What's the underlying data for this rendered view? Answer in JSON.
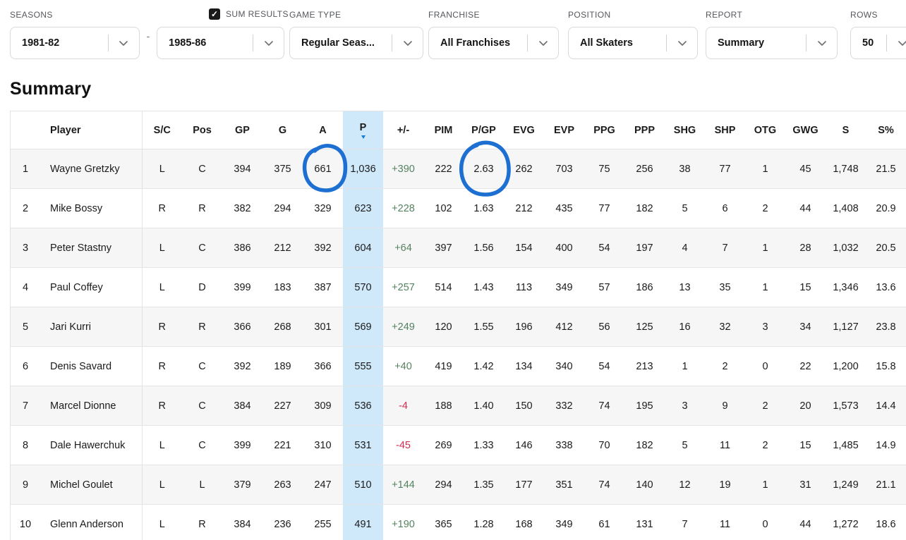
{
  "page_title": "Summary",
  "filters": {
    "seasons": {
      "label": "SEASONS",
      "from": "1981-82",
      "separator": "-",
      "to": "1985-86"
    },
    "sum_results": {
      "label": "SUM RESULTS",
      "checked": true,
      "check_glyph": "✓"
    },
    "game_type": {
      "label": "GAME TYPE",
      "value": "Regular Seas..."
    },
    "franchise": {
      "label": "FRANCHISE",
      "value": "All Franchises"
    },
    "position": {
      "label": "POSITION",
      "value": "All Skaters"
    },
    "report": {
      "label": "REPORT",
      "value": "Summary"
    },
    "rows": {
      "label": "ROWS",
      "value": "50"
    }
  },
  "table": {
    "columns": [
      "",
      "Player",
      "S/C",
      "Pos",
      "GP",
      "G",
      "A",
      "P",
      "+/-",
      "PIM",
      "P/GP",
      "EVG",
      "EVP",
      "PPG",
      "PPP",
      "SHG",
      "SHP",
      "OTG",
      "GWG",
      "S",
      "S%"
    ],
    "sorted_column": "P",
    "sort_direction": "desc",
    "colors": {
      "sorted_column_bg": "#cfe9fb",
      "positive": "#55825f",
      "negative": "#d12c50",
      "sort_arrow": "#1a7fd4"
    },
    "rows": [
      [
        "1",
        "Wayne Gretzky",
        "L",
        "C",
        "394",
        "375",
        "661",
        "1,036",
        "+390",
        "222",
        "2.63",
        "262",
        "703",
        "75",
        "256",
        "38",
        "77",
        "1",
        "45",
        "1,748",
        "21.5"
      ],
      [
        "2",
        "Mike Bossy",
        "R",
        "R",
        "382",
        "294",
        "329",
        "623",
        "+228",
        "102",
        "1.63",
        "212",
        "435",
        "77",
        "182",
        "5",
        "6",
        "2",
        "44",
        "1,408",
        "20.9"
      ],
      [
        "3",
        "Peter Stastny",
        "L",
        "C",
        "386",
        "212",
        "392",
        "604",
        "+64",
        "397",
        "1.56",
        "154",
        "400",
        "54",
        "197",
        "4",
        "7",
        "1",
        "28",
        "1,032",
        "20.5"
      ],
      [
        "4",
        "Paul Coffey",
        "L",
        "D",
        "399",
        "183",
        "387",
        "570",
        "+257",
        "514",
        "1.43",
        "113",
        "349",
        "57",
        "186",
        "13",
        "35",
        "1",
        "15",
        "1,346",
        "13.6"
      ],
      [
        "5",
        "Jari Kurri",
        "R",
        "R",
        "366",
        "268",
        "301",
        "569",
        "+249",
        "120",
        "1.55",
        "196",
        "412",
        "56",
        "125",
        "16",
        "32",
        "3",
        "34",
        "1,127",
        "23.8"
      ],
      [
        "6",
        "Denis Savard",
        "R",
        "C",
        "392",
        "189",
        "366",
        "555",
        "+40",
        "419",
        "1.42",
        "134",
        "340",
        "54",
        "213",
        "1",
        "2",
        "0",
        "22",
        "1,200",
        "15.8"
      ],
      [
        "7",
        "Marcel Dionne",
        "R",
        "C",
        "384",
        "227",
        "309",
        "536",
        "-4",
        "188",
        "1.40",
        "150",
        "332",
        "74",
        "195",
        "3",
        "9",
        "2",
        "20",
        "1,573",
        "14.4"
      ],
      [
        "8",
        "Dale Hawerchuk",
        "L",
        "C",
        "399",
        "221",
        "310",
        "531",
        "-45",
        "269",
        "1.33",
        "146",
        "338",
        "70",
        "182",
        "5",
        "11",
        "2",
        "15",
        "1,485",
        "14.9"
      ],
      [
        "9",
        "Michel Goulet",
        "L",
        "L",
        "379",
        "263",
        "247",
        "510",
        "+144",
        "294",
        "1.35",
        "177",
        "351",
        "74",
        "140",
        "12",
        "19",
        "1",
        "31",
        "1,249",
        "21.1"
      ],
      [
        "10",
        "Glenn Anderson",
        "L",
        "R",
        "384",
        "236",
        "255",
        "491",
        "+190",
        "365",
        "1.28",
        "168",
        "349",
        "61",
        "131",
        "7",
        "11",
        "0",
        "44",
        "1,272",
        "18.6"
      ]
    ]
  },
  "annotations": {
    "color": "#1e6fd2",
    "items": [
      "circle-around-assists-661",
      "circle-around-pgp-2.63"
    ]
  }
}
